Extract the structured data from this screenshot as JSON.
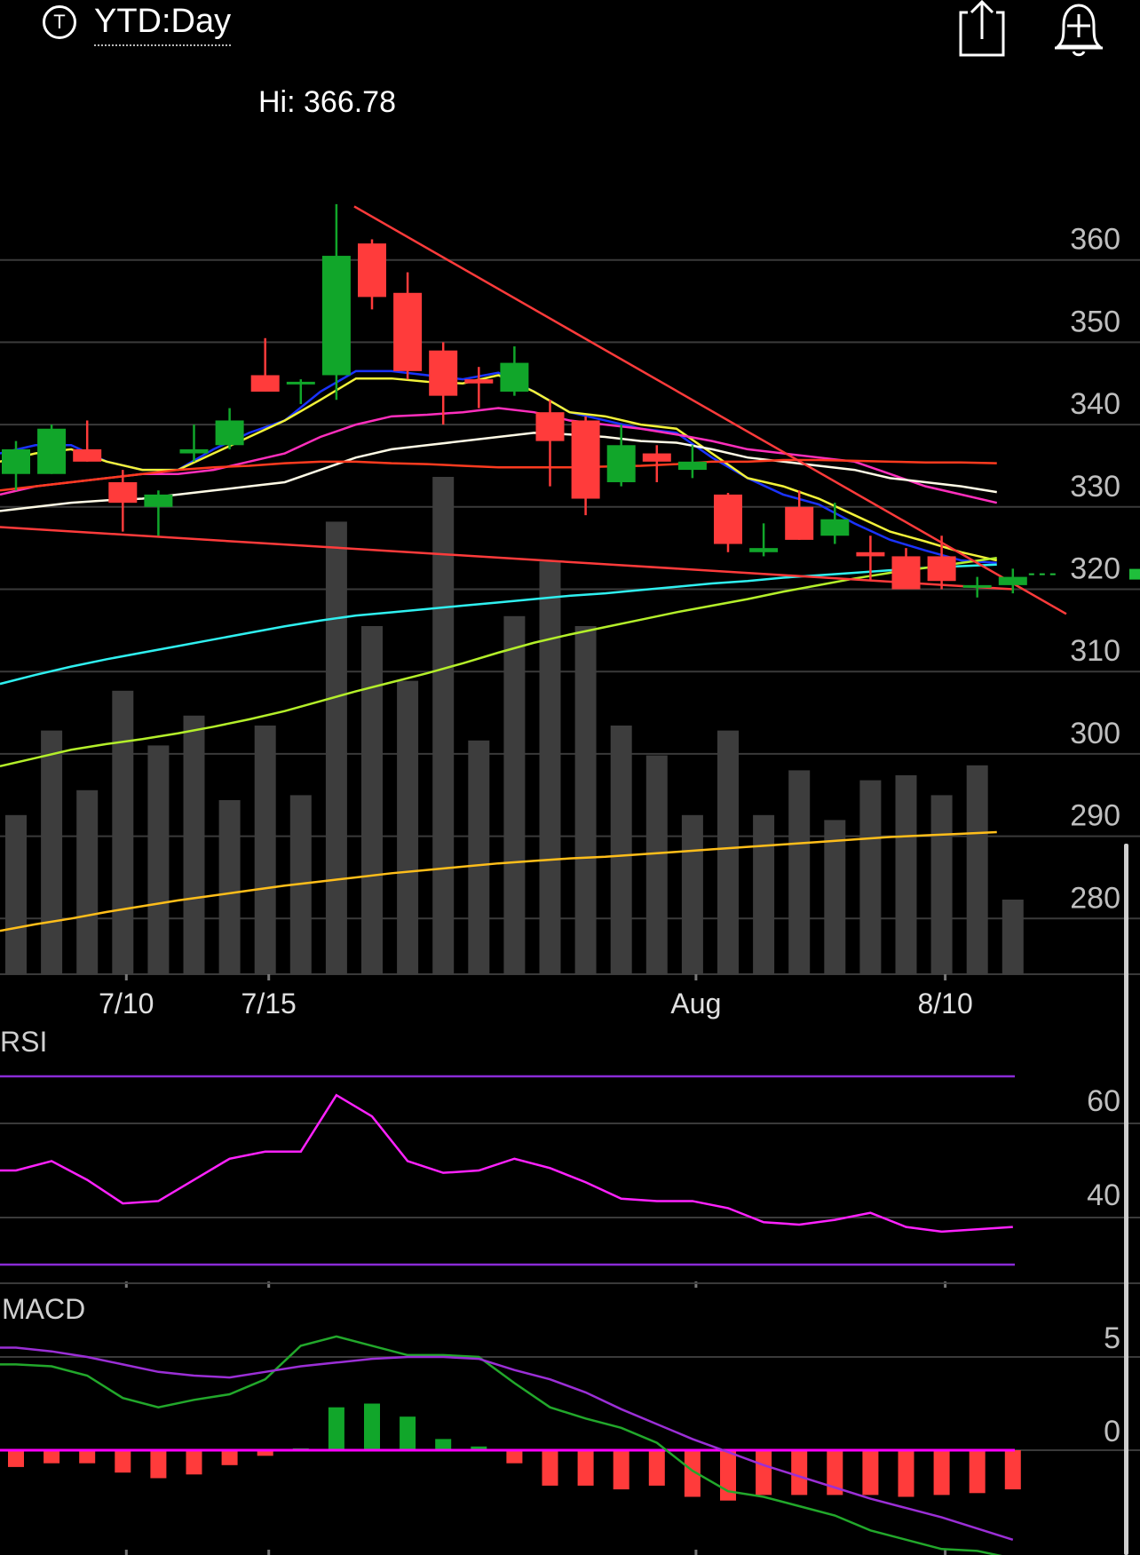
{
  "header": {
    "ticker_icon": "T",
    "timeframe": "YTD:Day",
    "share_icon": "share-icon",
    "alert_icon": "add-alert-bell-icon"
  },
  "chart_data": {
    "type": "candlestick",
    "hi_label": "Hi: 366.78",
    "price_axis": {
      "ticks": [
        360,
        350,
        340,
        330,
        320,
        310,
        300,
        290,
        280
      ],
      "ylim": [
        270,
        376
      ]
    },
    "date_labels": [
      {
        "label": "7/10",
        "index": 3
      },
      {
        "label": "7/15",
        "index": 7
      },
      {
        "label": "Aug",
        "index": 19
      },
      {
        "label": "8/10",
        "index": 26
      }
    ],
    "last_price_color": "#1fbf3b",
    "up_color": "#11a62a",
    "down_color": "#ff3b3b",
    "candles": [
      {
        "o": 334,
        "h": 338,
        "l": 332,
        "c": 337
      },
      {
        "o": 334,
        "h": 340,
        "l": 334,
        "c": 339.5
      },
      {
        "o": 337,
        "h": 340.5,
        "l": 335.5,
        "c": 335.5
      },
      {
        "o": 333,
        "h": 334.5,
        "l": 327,
        "c": 330.5
      },
      {
        "o": 330,
        "h": 332,
        "l": 326.5,
        "c": 331.5
      },
      {
        "o": 336.5,
        "h": 340,
        "l": 335.5,
        "c": 337
      },
      {
        "o": 337.5,
        "h": 342,
        "l": 337,
        "c": 340.5
      },
      {
        "o": 346,
        "h": 350.5,
        "l": 344,
        "c": 344
      },
      {
        "o": 345,
        "h": 345.5,
        "l": 342.5,
        "c": 345.2
      },
      {
        "o": 346,
        "h": 366.78,
        "l": 343,
        "c": 360.5
      },
      {
        "o": 362,
        "h": 362.5,
        "l": 354,
        "c": 355.5
      },
      {
        "o": 356,
        "h": 358.5,
        "l": 345.5,
        "c": 346.5
      },
      {
        "o": 349,
        "h": 350,
        "l": 340,
        "c": 343.5
      },
      {
        "o": 345.5,
        "h": 347,
        "l": 342,
        "c": 345
      },
      {
        "o": 344,
        "h": 349.5,
        "l": 343.5,
        "c": 347.5
      },
      {
        "o": 341.5,
        "h": 343,
        "l": 332.5,
        "c": 338
      },
      {
        "o": 340.5,
        "h": 341,
        "l": 329,
        "c": 331
      },
      {
        "o": 333,
        "h": 340,
        "l": 332.5,
        "c": 337.5
      },
      {
        "o": 336.5,
        "h": 337.5,
        "l": 333,
        "c": 335.5
      },
      {
        "o": 334.5,
        "h": 337.5,
        "l": 333.5,
        "c": 335.5
      },
      {
        "o": 331.5,
        "h": 331.7,
        "l": 324.5,
        "c": 325.5
      },
      {
        "o": 324.5,
        "h": 328,
        "l": 324,
        "c": 325
      },
      {
        "o": 330,
        "h": 332,
        "l": 326,
        "c": 326
      },
      {
        "o": 326.5,
        "h": 330.5,
        "l": 325.5,
        "c": 328.5
      },
      {
        "o": 324.5,
        "h": 326.5,
        "l": 321,
        "c": 324
      },
      {
        "o": 324,
        "h": 325,
        "l": 320,
        "c": 320
      },
      {
        "o": 324,
        "h": 326.5,
        "l": 320,
        "c": 321
      },
      {
        "o": 320.5,
        "h": 321.5,
        "l": 319,
        "c": 320.5
      },
      {
        "o": 320.5,
        "h": 322.5,
        "l": 319.5,
        "c": 321.5
      }
    ],
    "volume": [
      0.32,
      0.49,
      0.37,
      0.57,
      0.46,
      0.52,
      0.35,
      0.5,
      0.36,
      0.91,
      0.7,
      0.59,
      1.0,
      0.47,
      0.72,
      0.83,
      0.7,
      0.5,
      0.44,
      0.32,
      0.49,
      0.32,
      0.41,
      0.31,
      0.39,
      0.4,
      0.36,
      0.42,
      0.15
    ],
    "overlays": [
      {
        "name": "ma-short-blue",
        "color": "#1a33ff",
        "values": [
          336.5,
          337.5,
          337.5,
          335.5,
          334.5,
          334.5,
          337,
          339,
          340.5,
          344,
          346.5,
          346.5,
          346,
          345.5,
          346.3,
          344,
          341.5,
          340.5,
          339.5,
          339,
          336,
          333.5,
          331.5,
          330.3,
          328,
          326,
          324.7,
          323.5,
          323.2
        ]
      },
      {
        "name": "ma-short-yellow",
        "color": "#f2f23a",
        "values": [
          335.5,
          336.5,
          337,
          335.5,
          334.5,
          334.5,
          336.5,
          338.5,
          340.5,
          343,
          345.6,
          345.6,
          345.2,
          345,
          346,
          344,
          341.5,
          341,
          340,
          339.5,
          336.5,
          333.5,
          332.5,
          331,
          329,
          327,
          325.8,
          324.5,
          323.5
        ]
      },
      {
        "name": "ma-magenta",
        "color": "#ff2fbd",
        "values": [
          331.5,
          332.5,
          333,
          333.5,
          334,
          334,
          334.5,
          335.5,
          336.5,
          338.5,
          340,
          341,
          341.2,
          341.5,
          342,
          341.5,
          340.5,
          340,
          339.5,
          338.8,
          338,
          337,
          336.5,
          336,
          335.5,
          334,
          332.5,
          331.5,
          330.5
        ]
      },
      {
        "name": "ma-white",
        "color": "#fffbe6",
        "values": [
          329.5,
          330,
          330.5,
          330.8,
          331,
          331.5,
          332,
          332.5,
          333,
          334.5,
          336,
          337,
          337.5,
          338,
          338.5,
          339,
          338.8,
          338.5,
          338,
          337.8,
          337,
          336,
          335.5,
          335,
          334.5,
          333.5,
          333,
          332.5,
          331.8
        ]
      },
      {
        "name": "ma-orange",
        "color": "#ff3b1f",
        "values": [
          332,
          332.5,
          333,
          333.5,
          334,
          334.5,
          334.8,
          335,
          335.3,
          335.5,
          335.5,
          335.3,
          335.2,
          335,
          334.8,
          334.8,
          334.8,
          334.9,
          335,
          335.2,
          335.5,
          335.5,
          335.7,
          335.7,
          335.6,
          335.5,
          335.4,
          335.4,
          335.3
        ]
      },
      {
        "name": "ma-cyan",
        "color": "#2ff0f0",
        "values": [
          308.5,
          309.6,
          310.6,
          311.5,
          312.3,
          313.1,
          313.9,
          314.7,
          315.5,
          316.2,
          316.8,
          317.2,
          317.6,
          318,
          318.4,
          318.8,
          319.2,
          319.5,
          319.9,
          320.3,
          320.7,
          321,
          321.4,
          321.7,
          322,
          322.3,
          322.6,
          322.8,
          323
        ]
      },
      {
        "name": "ma-lime",
        "color": "#b4ef2a",
        "values": [
          298.5,
          299.5,
          300.5,
          301.2,
          301.8,
          302.5,
          303.3,
          304.2,
          305.2,
          306.4,
          307.6,
          308.7,
          309.8,
          311,
          312.3,
          313.5,
          314.5,
          315.4,
          316.3,
          317.2,
          318,
          318.8,
          319.7,
          320.5,
          321.3,
          322,
          322.6,
          323.2,
          323.8
        ]
      },
      {
        "name": "ma-gold",
        "color": "#ffbe1a",
        "values": [
          278.5,
          279.3,
          280,
          280.8,
          281.5,
          282.2,
          282.8,
          283.4,
          284,
          284.5,
          285,
          285.5,
          285.9,
          286.3,
          286.7,
          287,
          287.3,
          287.5,
          287.8,
          288.1,
          288.4,
          288.7,
          289,
          289.3,
          289.6,
          289.9,
          290.1,
          290.3,
          290.5
        ]
      }
    ],
    "trendlines": [
      {
        "name": "downtrend-line",
        "color": "#ff3b3b",
        "points": [
          [
            9.5,
            366.5
          ],
          [
            29.5,
            317
          ]
        ]
      },
      {
        "name": "long-support-line",
        "color": "#ff3b3b",
        "points": [
          [
            -1,
            327.7
          ],
          [
            28,
            320
          ]
        ]
      }
    ],
    "rsi": {
      "label": "RSI",
      "ticks": [
        60,
        40
      ],
      "ylim": [
        25,
        80
      ],
      "bands": [
        70,
        30
      ],
      "band_color": "#8a2bd6",
      "line_color": "#ff22ff",
      "values": [
        50,
        52,
        48,
        43,
        43.5,
        48,
        52.5,
        54,
        54,
        66,
        61.5,
        52,
        49.5,
        50,
        52.5,
        50.5,
        47.5,
        44,
        43.5,
        43.5,
        42,
        39,
        38.5,
        39.5,
        41,
        38,
        37,
        37.5,
        38
      ]
    },
    "macd": {
      "label": "MACD",
      "ticks": [
        5,
        0
      ],
      "ylim": [
        -7.5,
        9
      ],
      "zero_color": "#ff00ff",
      "macd_color": "#22a82b",
      "signal_color": "#9b2fd6",
      "macd": [
        4.6,
        4.5,
        4.0,
        2.8,
        2.3,
        2.7,
        3.0,
        3.8,
        5.6,
        6.1,
        5.6,
        5.1,
        5.1,
        5.0,
        3.6,
        2.3,
        1.7,
        1.2,
        0.4,
        -1.1,
        -2.2,
        -2.5,
        -3.0,
        -3.5,
        -4.3,
        -4.8,
        -5.3,
        -5.4,
        -5.8
      ],
      "signal": [
        5.5,
        5.3,
        5.0,
        4.6,
        4.2,
        4.0,
        3.9,
        4.2,
        4.5,
        4.7,
        4.9,
        5.0,
        5.0,
        4.9,
        4.3,
        3.8,
        3.1,
        2.2,
        1.4,
        0.6,
        -0.1,
        -0.8,
        -1.4,
        -2.0,
        -2.6,
        -3.1,
        -3.6,
        -4.2,
        -4.8
      ],
      "histogram": [
        -0.9,
        -0.7,
        -0.7,
        -1.2,
        -1.5,
        -1.3,
        -0.8,
        -0.3,
        0.1,
        2.3,
        2.5,
        1.8,
        0.6,
        0.2,
        -0.7,
        -1.9,
        -1.9,
        -2.1,
        -1.9,
        -2.5,
        -2.7,
        -2.4,
        -2.4,
        -2.4,
        -2.4,
        -2.5,
        -2.4,
        -2.3,
        -2.1
      ]
    }
  }
}
